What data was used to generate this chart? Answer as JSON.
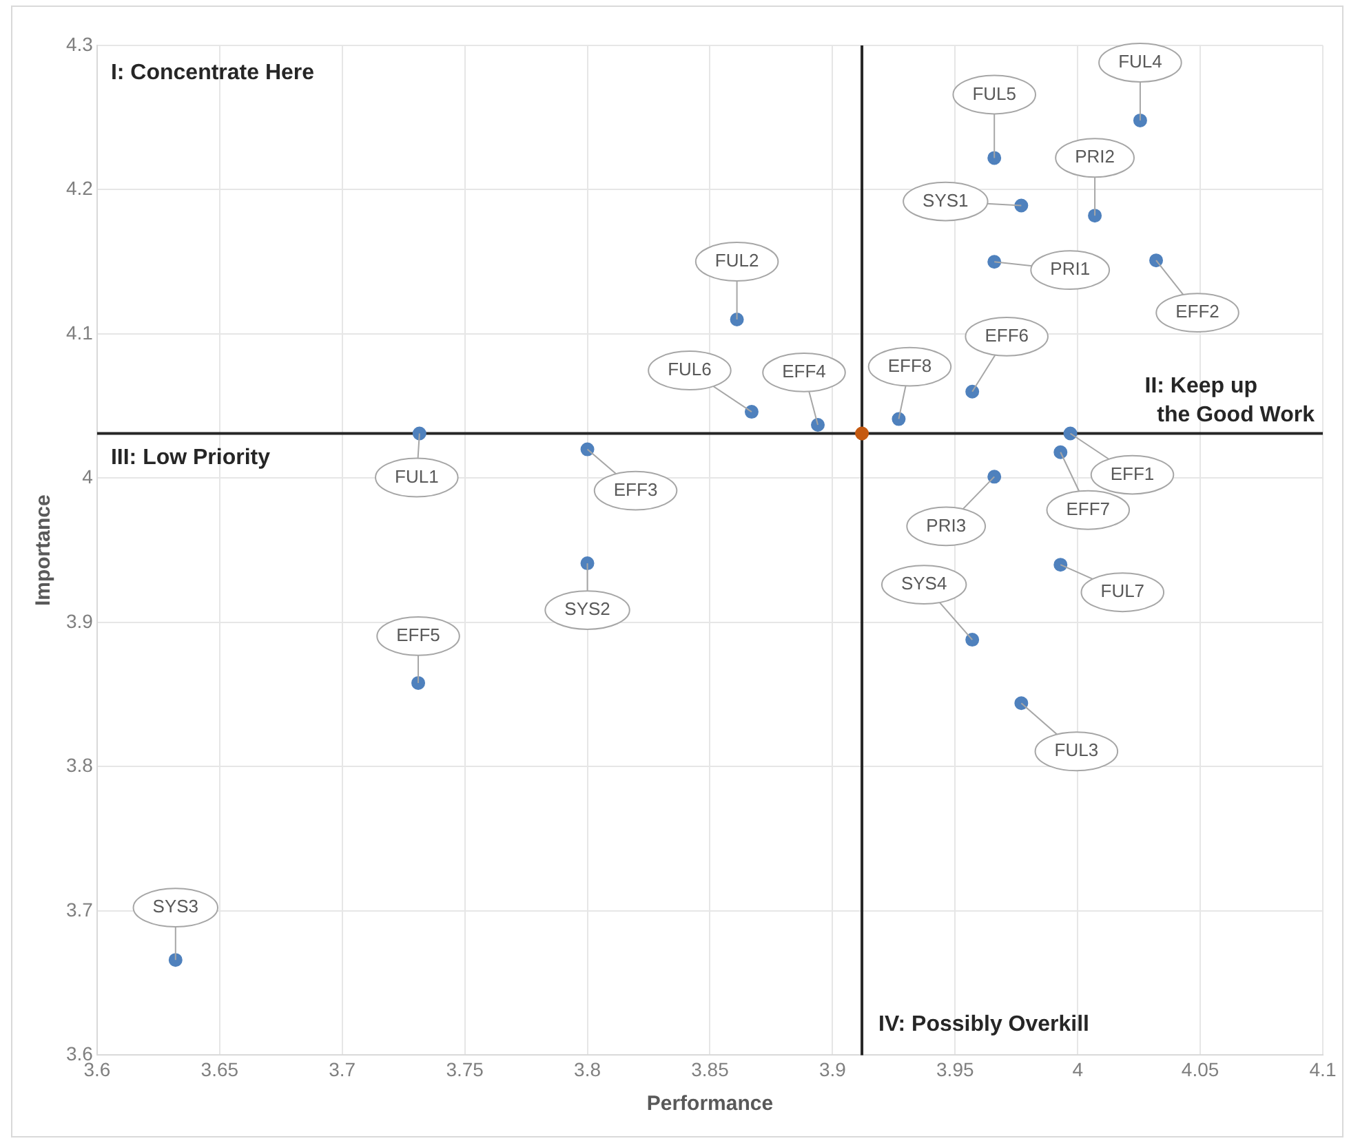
{
  "chart_data": {
    "type": "scatter",
    "xlabel": "Performance",
    "ylabel": "Importance",
    "xlim": [
      3.6,
      4.1
    ],
    "xticks": [
      3.6,
      3.65,
      3.7,
      3.75,
      3.8,
      3.85,
      3.9,
      3.95,
      4,
      4.05,
      4.1
    ],
    "ylim": [
      3.6,
      4.3
    ],
    "yticks": [
      3.6,
      3.7,
      3.8,
      3.9,
      4,
      4.1,
      4.2,
      4.3
    ],
    "grid": true,
    "legend": false,
    "marker": "circle",
    "series": [
      {
        "color": "#4f81bd",
        "x": [
          3.7315,
          3.8,
          3.8,
          3.731,
          3.632,
          3.867,
          3.894,
          3.861,
          3.927,
          3.957,
          3.977,
          3.966,
          4.0255,
          4.007,
          3.966,
          4.032,
          3.997,
          3.993,
          3.966,
          3.993,
          3.957,
          3.977
        ],
        "values": [
          4.031,
          4.02,
          3.941,
          3.858,
          3.666,
          4.046,
          4.037,
          4.11,
          4.041,
          4.06,
          4.189,
          4.222,
          4.248,
          4.182,
          4.15,
          4.151,
          4.031,
          4.018,
          4.001,
          3.94,
          3.888,
          3.844
        ]
      },
      {
        "color": "#c55a11",
        "x": [
          3.912
        ],
        "values": [
          4.031
        ]
      }
    ],
    "ref_lines": [
      {
        "axis": "x",
        "value": 3.912,
        "color": "#262626"
      },
      {
        "axis": "y",
        "value": 4.031,
        "color": "#262626"
      }
    ],
    "annotations": [
      "I: Concentrate Here",
      "II: Keep up\n  the Good Work",
      "III: Low Priority",
      "IV: Possibly Overkill",
      {
        "text": "FUL1",
        "x": 3.7315,
        "y": 4.031
      },
      {
        "text": "EFF3",
        "x": 3.8,
        "y": 4.02
      },
      {
        "text": "SYS2",
        "x": 3.8,
        "y": 3.941
      },
      {
        "text": "EFF5",
        "x": 3.731,
        "y": 3.858
      },
      {
        "text": "SYS3",
        "x": 3.632,
        "y": 3.666
      },
      {
        "text": "FUL6",
        "x": 3.867,
        "y": 4.046
      },
      {
        "text": "EFF4",
        "x": 3.894,
        "y": 4.037
      },
      {
        "text": "FUL2",
        "x": 3.861,
        "y": 4.11
      },
      {
        "text": "EFF8",
        "x": 3.927,
        "y": 4.041
      },
      {
        "text": "EFF6",
        "x": 3.957,
        "y": 4.06
      },
      {
        "text": "SYS1",
        "x": 3.977,
        "y": 4.189
      },
      {
        "text": "FUL5",
        "x": 3.966,
        "y": 4.222
      },
      {
        "text": "FUL4",
        "x": 4.0255,
        "y": 4.248
      },
      {
        "text": "PRI2",
        "x": 4.007,
        "y": 4.182
      },
      {
        "text": "PRI1",
        "x": 3.966,
        "y": 4.15
      },
      {
        "text": "EFF2",
        "x": 4.032,
        "y": 4.151
      },
      {
        "text": "EFF1",
        "x": 3.997,
        "y": 4.031
      },
      {
        "text": "EFF7",
        "x": 3.993,
        "y": 4.018
      },
      {
        "text": "PRI3",
        "x": 3.966,
        "y": 4.001
      },
      {
        "text": "FUL7",
        "x": 3.993,
        "y": 3.94
      },
      {
        "text": "SYS4",
        "x": 3.957,
        "y": 3.888
      },
      {
        "text": "FUL3",
        "x": 3.977,
        "y": 3.844
      }
    ]
  }
}
